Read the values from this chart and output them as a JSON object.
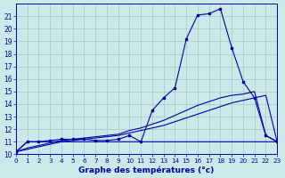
{
  "xlabel": "Graphe des températures (°c)",
  "bg_color": "#cce8e8",
  "grid_color": "#99cccc",
  "line_color": "#0000aa",
  "hours": [
    0,
    1,
    2,
    3,
    4,
    5,
    6,
    7,
    8,
    9,
    10,
    11,
    12,
    13,
    14,
    15,
    16,
    17,
    18,
    19,
    20,
    21,
    22,
    23
  ],
  "temp_main": [
    10.2,
    11.0,
    11.0,
    11.1,
    11.2,
    11.2,
    11.2,
    11.1,
    11.1,
    11.2,
    11.5,
    11.0,
    13.5,
    14.5,
    15.3,
    19.2,
    21.1,
    21.2,
    21.6,
    18.5,
    15.8,
    14.5,
    11.5,
    11.0
  ],
  "temp_flat": [
    10.2,
    11.0,
    11.0,
    11.0,
    11.0,
    11.0,
    11.0,
    11.0,
    11.0,
    11.0,
    11.0,
    11.0,
    11.0,
    11.0,
    11.0,
    11.0,
    11.0,
    11.0,
    11.0,
    11.0,
    11.0,
    11.0,
    11.0,
    11.0
  ],
  "temp_linear1": [
    10.2,
    10.4,
    10.6,
    10.8,
    11.0,
    11.1,
    11.2,
    11.3,
    11.4,
    11.5,
    11.7,
    11.9,
    12.1,
    12.3,
    12.6,
    12.9,
    13.2,
    13.5,
    13.8,
    14.1,
    14.3,
    14.5,
    14.7,
    11.0
  ],
  "temp_linear2": [
    10.2,
    10.5,
    10.7,
    10.9,
    11.1,
    11.2,
    11.3,
    11.4,
    11.5,
    11.6,
    11.9,
    12.1,
    12.4,
    12.7,
    13.1,
    13.5,
    13.9,
    14.2,
    14.5,
    14.7,
    14.8,
    15.0,
    11.5,
    11.0
  ],
  "ylim": [
    10,
    22
  ],
  "yticks": [
    10,
    11,
    12,
    13,
    14,
    15,
    16,
    17,
    18,
    19,
    20,
    21
  ],
  "xlim": [
    0,
    23
  ],
  "xtick_fontsize": 5.2,
  "ytick_fontsize": 5.5,
  "xlabel_fontsize": 6.5
}
